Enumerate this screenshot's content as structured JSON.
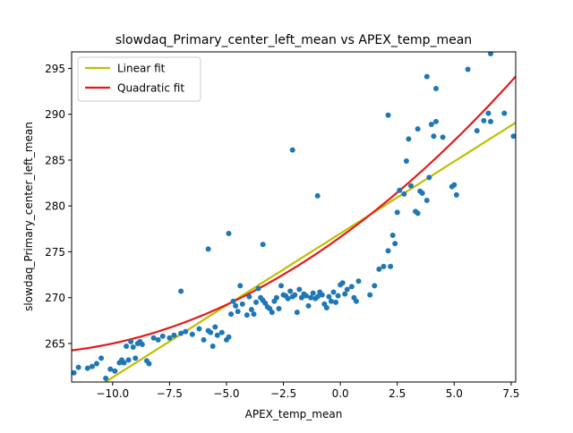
{
  "chart_data": {
    "type": "scatter",
    "title": "slowdaq_Primary_center_left_mean vs APEX_temp_mean",
    "xlabel": "APEX_temp_mean",
    "ylabel": "slowdaq_Primary_center_left_mean",
    "xlim": [
      -11.8,
      7.7
    ],
    "ylim": [
      260.8,
      296.8
    ],
    "xticks": [
      -10.0,
      -7.5,
      -5.0,
      -2.5,
      0.0,
      2.5,
      5.0,
      7.5
    ],
    "xtick_labels": [
      "−10.0",
      "−7.5",
      "−5.0",
      "−2.5",
      "0.0",
      "2.5",
      "5.0",
      "7.5"
    ],
    "yticks": [
      265,
      270,
      275,
      280,
      285,
      290,
      295
    ],
    "ytick_labels": [
      "265",
      "270",
      "275",
      "280",
      "285",
      "290",
      "295"
    ],
    "grid": false,
    "legend": "top-left",
    "colors": {
      "points": "#1f77b4",
      "linear": "#bfbf00",
      "quadratic": "#e31a1c",
      "axes": "#000000"
    },
    "points": {
      "x": [
        -11.7,
        -11.5,
        -11.1,
        -10.9,
        -10.7,
        -10.5,
        -10.3,
        -10.1,
        -9.9,
        -9.7,
        -9.6,
        -9.5,
        -9.4,
        -9.3,
        -9.2,
        -9.1,
        -9.0,
        -8.9,
        -8.8,
        -8.7,
        -8.5,
        -8.4,
        -8.2,
        -8.0,
        -7.8,
        -7.5,
        -7.3,
        -7.0,
        -6.8,
        -6.5,
        -6.2,
        -6.0,
        -5.8,
        -5.7,
        -5.6,
        -5.5,
        -5.4,
        -5.2,
        -5.0,
        -4.9,
        -4.8,
        -4.7,
        -4.6,
        -4.5,
        -4.4,
        -4.3,
        -4.1,
        -4.0,
        -3.9,
        -3.8,
        -3.7,
        -3.6,
        -3.5,
        -3.4,
        -3.3,
        -3.2,
        -3.1,
        -3.0,
        -2.9,
        -2.8,
        -2.7,
        -2.6,
        -2.5,
        -2.4,
        -2.3,
        -2.2,
        -2.1,
        -2.0,
        -1.9,
        -1.8,
        -1.7,
        -1.6,
        -1.5,
        -1.4,
        -1.3,
        -1.2,
        -1.1,
        -1.0,
        -0.9,
        -0.8,
        -0.7,
        -0.6,
        -0.5,
        -0.4,
        -0.3,
        -0.2,
        -0.1,
        0.0,
        0.1,
        0.2,
        0.3,
        0.5,
        0.6,
        0.7,
        0.8,
        1.3,
        1.5,
        1.7,
        1.9,
        2.1,
        2.2,
        2.3,
        2.4,
        2.5,
        2.6,
        2.8,
        2.9,
        3.0,
        3.1,
        3.3,
        3.4,
        3.5,
        3.6,
        3.8,
        3.9,
        4.0,
        4.1,
        4.2,
        4.5,
        4.9,
        5.0,
        5.1,
        6.0,
        6.3,
        6.5,
        6.6,
        7.2,
        7.6,
        5.6,
        3.8,
        -2.1,
        -5.8,
        -4.9,
        -1.0,
        -3.4,
        -7.0,
        2.1,
        6.6,
        4.2,
        3.4
      ],
      "y": [
        261.8,
        262.4,
        262.3,
        262.5,
        262.8,
        263.4,
        261.2,
        262.2,
        262.0,
        262.9,
        263.2,
        262.9,
        264.7,
        263.2,
        265.2,
        264.6,
        263.4,
        265.0,
        265.2,
        264.9,
        263.1,
        262.8,
        265.6,
        265.4,
        265.8,
        265.6,
        265.9,
        266.1,
        266.3,
        266.0,
        266.6,
        265.4,
        266.4,
        266.2,
        264.7,
        266.8,
        265.9,
        266.2,
        265.4,
        265.7,
        268.2,
        269.6,
        269.1,
        268.5,
        271.3,
        269.3,
        268.1,
        270.1,
        268.7,
        268.2,
        269.5,
        271.0,
        270.0,
        269.7,
        269.4,
        269.0,
        268.8,
        268.4,
        269.6,
        270.0,
        268.8,
        271.3,
        270.3,
        270.2,
        269.9,
        270.7,
        270.1,
        270.3,
        268.4,
        270.9,
        270.0,
        270.4,
        270.2,
        269.1,
        270.0,
        270.5,
        269.9,
        270.1,
        270.6,
        270.3,
        269.3,
        268.9,
        270.1,
        269.6,
        270.6,
        269.5,
        270.2,
        271.4,
        271.6,
        270.4,
        270.9,
        271.2,
        270.0,
        269.6,
        271.8,
        270.3,
        271.3,
        273.1,
        273.4,
        275.1,
        273.4,
        276.8,
        275.9,
        279.3,
        281.7,
        281.3,
        284.9,
        287.3,
        282.2,
        279.4,
        279.2,
        281.6,
        281.4,
        280.6,
        283.1,
        288.9,
        287.6,
        289.2,
        287.5,
        282.1,
        282.3,
        281.2,
        288.2,
        289.3,
        290.1,
        296.6,
        290.1,
        287.6,
        294.9,
        294.1,
        286.1,
        275.3,
        277.0,
        281.1,
        275.8,
        270.7,
        289.9,
        289.2,
        292.8,
        288.4
      ],
      "name": ""
    },
    "fits": [
      {
        "name": "Linear fit",
        "kind": "linear",
        "coeffs": [
          277.0,
          1.57
        ]
      },
      {
        "name": "Quadratic fit",
        "kind": "quadratic",
        "coeffs": [
          276.6,
          1.79,
          0.063
        ]
      }
    ]
  }
}
